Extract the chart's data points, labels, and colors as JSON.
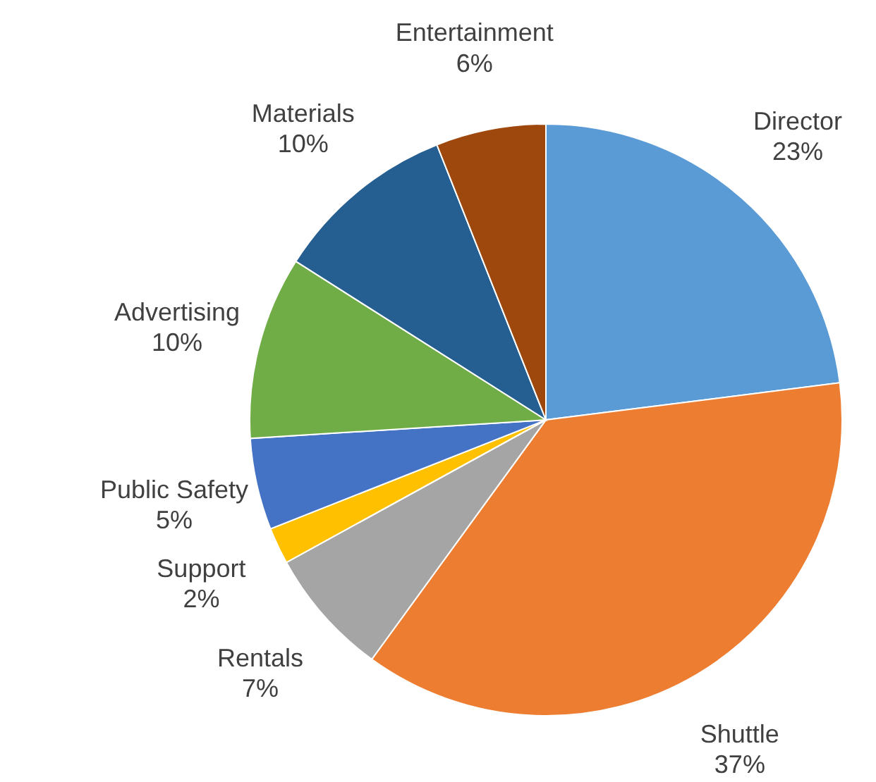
{
  "chart_data": {
    "type": "pie",
    "categories": [
      "Director",
      "Shuttle",
      "Rentals",
      "Support",
      "Public Safety",
      "Advertising",
      "Materials",
      "Entertainment"
    ],
    "values": [
      23,
      37,
      7,
      2,
      5,
      10,
      10,
      6
    ],
    "value_labels": [
      "23%",
      "37%",
      "7%",
      "2%",
      "5%",
      "10%",
      "10%",
      "6%"
    ],
    "colors": [
      "#5b9bd5",
      "#ed7d31",
      "#a5a5a5",
      "#ffc000",
      "#4472c4",
      "#70ad47",
      "#255e91",
      "#9e480e"
    ]
  }
}
